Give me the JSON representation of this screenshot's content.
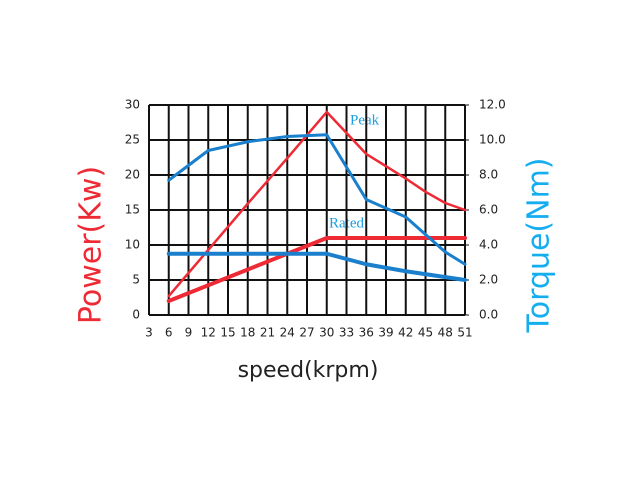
{
  "chart_data": {
    "type": "line",
    "x_label": "speed(krpm)",
    "y_label": "Power(Kw)",
    "y2_label": "Torque(Nm)",
    "y_color": "#ee2a35",
    "y2_color": "#14aef0",
    "xlim": [
      3,
      51
    ],
    "xticks": [
      3,
      6,
      9,
      12,
      15,
      18,
      21,
      24,
      27,
      30,
      33,
      36,
      39,
      42,
      45,
      48,
      51
    ],
    "ylim": [
      0,
      30
    ],
    "yticks": [
      0,
      5,
      10,
      15,
      20,
      25,
      30
    ],
    "y2lim": [
      0,
      12
    ],
    "y2ticks": [
      {
        "value": 0,
        "label": "0.0"
      },
      {
        "value": 2,
        "label": "2.0"
      },
      {
        "value": 4,
        "label": "4.0"
      },
      {
        "value": 6,
        "label": "6.0"
      },
      {
        "value": 8,
        "label": "8.0"
      },
      {
        "value": 10,
        "label": "10.0"
      },
      {
        "value": 12,
        "label": "12.0"
      }
    ],
    "grid": true,
    "annotations": [
      "Peak",
      "Rated"
    ],
    "series": [
      {
        "color": "#ee2a35",
        "line_width": 2.5,
        "x": [
          6,
          12,
          18,
          24,
          30,
          36,
          42,
          45,
          48,
          51
        ],
        "values": [
          2.7,
          9.3,
          15.9,
          22.4,
          29,
          23,
          19.5,
          17.6,
          16,
          15
        ]
      },
      {
        "color": "#ee2a35",
        "line_width": 4,
        "x": [
          6,
          30,
          51
        ],
        "values": [
          2,
          11,
          11
        ]
      },
      {
        "color": "#1a7fcc",
        "line_width": 3,
        "axis": "y2",
        "x": [
          6,
          12,
          18,
          24,
          30,
          36,
          42,
          45,
          48,
          51
        ],
        "values": [
          7.7,
          9.4,
          9.9,
          10.2,
          10.3,
          6.6,
          5.6,
          4.6,
          3.6,
          2.9
        ]
      },
      {
        "color": "#1a7fcc",
        "line_width": 4,
        "axis": "y2",
        "x": [
          6,
          30,
          36,
          42,
          51
        ],
        "values": [
          3.5,
          3.5,
          2.9,
          2.5,
          2.0
        ]
      }
    ]
  }
}
